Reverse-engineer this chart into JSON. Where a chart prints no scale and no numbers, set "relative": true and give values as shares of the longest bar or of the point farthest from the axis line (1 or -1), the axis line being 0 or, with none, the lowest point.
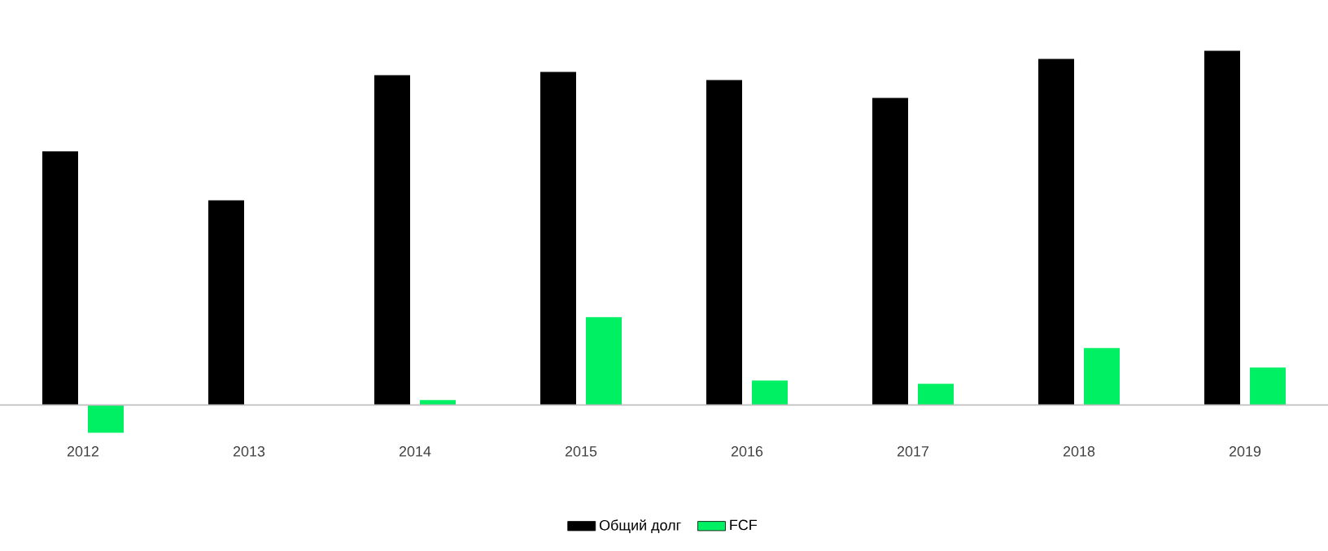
{
  "chart_data": {
    "type": "bar",
    "relative": true,
    "legend": "bottom",
    "categories": [
      "2012",
      "2013",
      "2014",
      "2015",
      "2016",
      "2017",
      "2018",
      "2019"
    ],
    "series": [
      {
        "name": "Общий долг",
        "color": "#000000",
        "values": [
          0.716,
          0.578,
          0.931,
          0.94,
          0.917,
          0.867,
          0.977,
          1.0
        ]
      },
      {
        "name": "FCF",
        "color": "#00f064",
        "values": [
          -0.078,
          null,
          0.014,
          0.248,
          0.069,
          0.06,
          0.161,
          0.106
        ]
      }
    ]
  }
}
